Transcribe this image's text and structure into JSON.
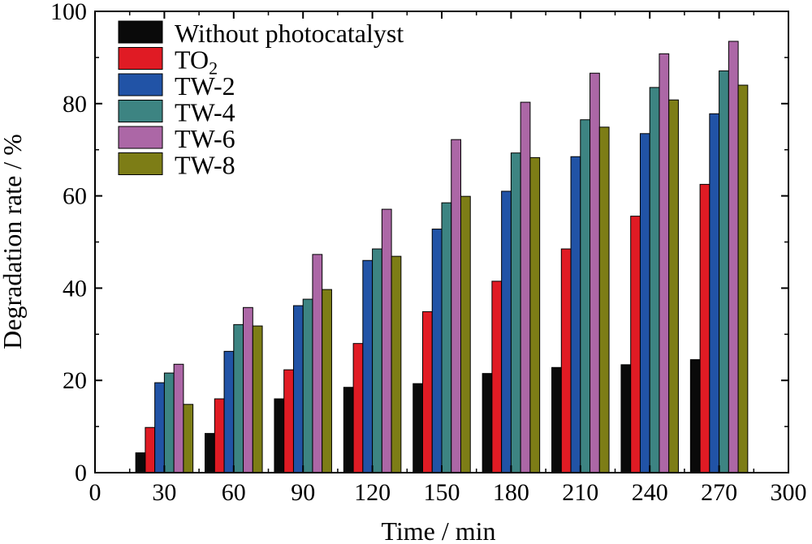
{
  "chart_data": {
    "type": "bar",
    "xlabel": "Time / min",
    "ylabel": "Degradation rate / %",
    "xlim": [
      0,
      300
    ],
    "ylim": [
      0,
      100
    ],
    "x_ticks": [
      "0",
      "30",
      "60",
      "90",
      "120",
      "150",
      "180",
      "210",
      "240",
      "270",
      "300"
    ],
    "y_ticks": [
      "0",
      "20",
      "40",
      "60",
      "80",
      "100"
    ],
    "categories": [
      30,
      60,
      90,
      120,
      150,
      180,
      210,
      240,
      270
    ],
    "legend_position": "top-left",
    "grid": false,
    "series": [
      {
        "name": "Without photocatalyst",
        "color": "#0a0a0a",
        "values": [
          4.3,
          8.5,
          16.0,
          18.5,
          19.3,
          21.5,
          22.8,
          23.4,
          24.5
        ]
      },
      {
        "name": "TO2",
        "label_main": "TO",
        "label_sub": "2",
        "color": "#e01b24",
        "values": [
          9.8,
          16.0,
          22.3,
          28.0,
          34.9,
          41.5,
          48.5,
          55.6,
          62.5
        ]
      },
      {
        "name": "TW-2",
        "color": "#2153a6",
        "values": [
          19.5,
          26.3,
          36.2,
          46.0,
          52.8,
          61.0,
          68.5,
          73.5,
          77.8
        ]
      },
      {
        "name": "TW-4",
        "color": "#3d8482",
        "values": [
          21.6,
          32.1,
          37.6,
          48.5,
          58.5,
          69.3,
          76.5,
          83.5,
          87.1
        ]
      },
      {
        "name": "TW-6",
        "color": "#ac67a6",
        "values": [
          23.5,
          35.8,
          47.3,
          57.1,
          72.2,
          80.3,
          86.6,
          90.8,
          93.5
        ]
      },
      {
        "name": "TW-8",
        "color": "#7d7d16",
        "values": [
          14.8,
          31.8,
          39.7,
          46.9,
          59.9,
          68.3,
          74.9,
          80.8,
          84.0
        ]
      }
    ]
  }
}
